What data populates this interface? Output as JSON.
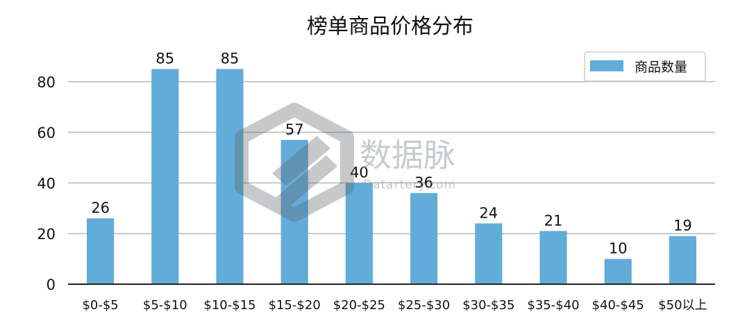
{
  "chart_data": {
    "type": "bar",
    "title": "榜单商品价格分布",
    "categories": [
      "$0-$5",
      "$5-$10",
      "$10-$15",
      "$15-$20",
      "$20-$25",
      "$25-$30",
      "$30-$35",
      "$35-$40",
      "$40-$45",
      "$50以上"
    ],
    "series": [
      {
        "name": "商品数量",
        "values": [
          26,
          85,
          85,
          57,
          40,
          36,
          24,
          21,
          10,
          19
        ]
      }
    ],
    "ylim": [
      0,
      95
    ],
    "yticks": [
      0,
      20,
      40,
      60,
      80
    ],
    "grid": true,
    "legend": "top-right",
    "data_labels": true,
    "colors": {
      "bar": "#62acd9",
      "grid": "#b8b8b8",
      "axis": "#222222"
    }
  },
  "watermark": {
    "brand": "数据脉",
    "url": "Datartery.com",
    "logo": "hexagon-logo"
  }
}
